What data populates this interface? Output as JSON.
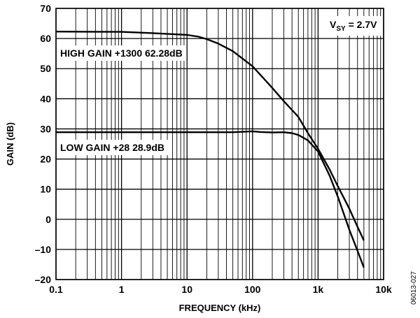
{
  "chart_data": {
    "type": "line",
    "xlabel": "FREQUENCY (kHz)",
    "ylabel": "GAIN (dB)",
    "xscale": "log",
    "xlim": [
      0.1,
      10000
    ],
    "ylim": [
      -20,
      70
    ],
    "xticks": [
      {
        "value": 0.1,
        "label": "0.1"
      },
      {
        "value": 1,
        "label": "1"
      },
      {
        "value": 10,
        "label": "10"
      },
      {
        "value": 100,
        "label": "100"
      },
      {
        "value": 1000,
        "label": "1k"
      },
      {
        "value": 10000,
        "label": "10k"
      }
    ],
    "yticks": [
      {
        "value": 70,
        "label": "70"
      },
      {
        "value": 60,
        "label": "60"
      },
      {
        "value": 50,
        "label": "50"
      },
      {
        "value": 40,
        "label": "40"
      },
      {
        "value": 30,
        "label": "30"
      },
      {
        "value": 20,
        "label": "20"
      },
      {
        "value": 10,
        "label": "10"
      },
      {
        "value": 0,
        "label": "0"
      },
      {
        "value": -10,
        "label": "–10"
      },
      {
        "value": -20,
        "label": "–20"
      }
    ],
    "grid": true,
    "annotations": {
      "supply_main": "V",
      "supply_sub": "SY",
      "supply_value": " = 2.7V",
      "high_gain": "HIGH GAIN +1300 62.28dB",
      "low_gain": "LOW GAIN +28 28.9dB"
    },
    "figure_id": "06013-027",
    "series": [
      {
        "label_key": "high_gain",
        "points": [
          [
            0.1,
            62.3
          ],
          [
            1,
            62.2
          ],
          [
            3,
            61.8
          ],
          [
            10,
            61.2
          ],
          [
            15,
            60.6
          ],
          [
            20,
            59.8
          ],
          [
            30,
            58.3
          ],
          [
            50,
            55.8
          ],
          [
            100,
            50.8
          ],
          [
            200,
            43.6
          ],
          [
            300,
            39.2
          ],
          [
            500,
            34.0
          ],
          [
            700,
            28.6
          ],
          [
            1000,
            23.4
          ],
          [
            1500,
            16.5
          ],
          [
            2000,
            11.0
          ],
          [
            3000,
            3.5
          ],
          [
            4000,
            -2.5
          ],
          [
            5000,
            -7.0
          ]
        ]
      },
      {
        "label_key": "low_gain",
        "points": [
          [
            0.1,
            28.9
          ],
          [
            1,
            28.9
          ],
          [
            10,
            28.9
          ],
          [
            50,
            28.9
          ],
          [
            100,
            29.2
          ],
          [
            130,
            29.0
          ],
          [
            200,
            28.8
          ],
          [
            300,
            28.9
          ],
          [
            400,
            28.6
          ],
          [
            500,
            28.0
          ],
          [
            700,
            26.2
          ],
          [
            1000,
            22.5
          ],
          [
            1500,
            14.5
          ],
          [
            2000,
            7.5
          ],
          [
            3000,
            -3.5
          ],
          [
            4000,
            -10.5
          ],
          [
            5000,
            -16.0
          ]
        ]
      }
    ]
  }
}
